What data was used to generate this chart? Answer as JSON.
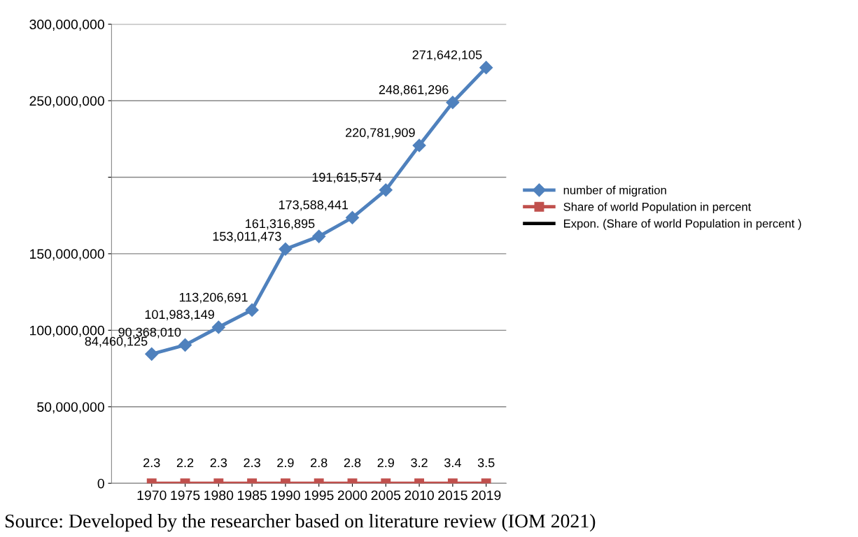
{
  "chart_data": {
    "type": "line",
    "categories": [
      "1970",
      "1975",
      "1980",
      "1985",
      "1990",
      "1995",
      "2000",
      "2005",
      "2010",
      "2015",
      "2019"
    ],
    "series": [
      {
        "name": "number of migration",
        "color": "#4f81bd",
        "marker": "diamond",
        "values": [
          84460125,
          90368010,
          101983149,
          113206691,
          153011473,
          161316895,
          173588441,
          191615574,
          220781909,
          248861296,
          271642105
        ],
        "value_labels": [
          "84,460,125",
          "90,368,010",
          "101,983,149",
          "113,206,691",
          "153,011,473",
          "161,316,895",
          "173,588,441",
          "191,615,574",
          "220,781,909",
          "248,861,296",
          "271,642,105"
        ]
      },
      {
        "name": "Share of world Population in percent",
        "color": "#c0504d",
        "marker": "square",
        "values": [
          2.3,
          2.2,
          2.3,
          2.3,
          2.9,
          2.8,
          2.8,
          2.9,
          3.2,
          3.4,
          3.5
        ],
        "value_labels": [
          "2.3",
          "2.2",
          "2.3",
          "2.3",
          "2.9",
          "2.8",
          "2.8",
          "2.9",
          "3.2",
          "3.4",
          "3.5"
        ]
      },
      {
        "name": "Expon. (Share of world Population in percent )",
        "color": "#000000",
        "marker": "none",
        "values": [
          null,
          null,
          null,
          null,
          null,
          null,
          null,
          null,
          null,
          null,
          null
        ]
      }
    ],
    "ylim": [
      0,
      300000000
    ],
    "yticks": [
      {
        "value": 0,
        "label": "0"
      },
      {
        "value": 50000000,
        "label": "50,000,000"
      },
      {
        "value": 100000000,
        "label": "100,000,000"
      },
      {
        "value": 150000000,
        "label": "150,000,000"
      },
      {
        "value": 200000000,
        "label": null
      },
      {
        "value": 250000000,
        "label": "250,000,000"
      },
      {
        "value": 300000000,
        "label": "300,000,000"
      }
    ],
    "grid": "y",
    "legend": "right",
    "line_style": "solid",
    "annotations": [
      "Source: Developed by the researcher based on literature review (IOM 2021)"
    ]
  }
}
